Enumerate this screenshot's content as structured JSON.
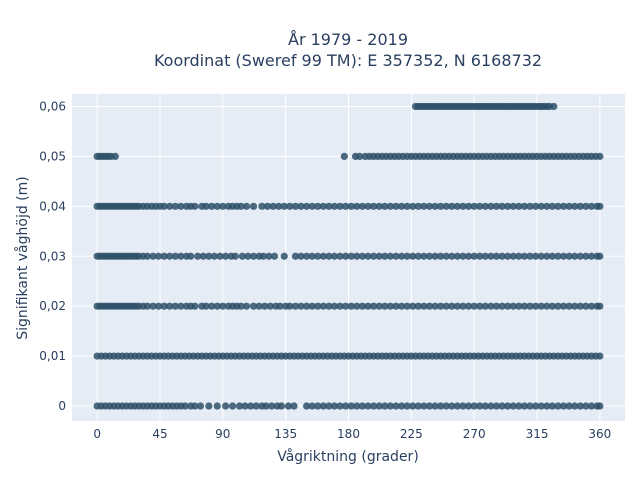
{
  "chart_data": {
    "type": "scatter",
    "title_line1": "År 1979 - 2019",
    "title_line2": "Koordinat (Sweref 99 TM): E 357352, N 6168732",
    "xlabel": "Vågriktning (grader)",
    "ylabel": "Signifikant våghöjd (m)",
    "xlim": [
      -18,
      378
    ],
    "ylim": [
      -0.003,
      0.0625
    ],
    "grid": true,
    "x_ticks": [
      {
        "value": 0,
        "label": "0"
      },
      {
        "value": 45,
        "label": "45"
      },
      {
        "value": 90,
        "label": "90"
      },
      {
        "value": 135,
        "label": "135"
      },
      {
        "value": 180,
        "label": "180"
      },
      {
        "value": 225,
        "label": "225"
      },
      {
        "value": 270,
        "label": "270"
      },
      {
        "value": 315,
        "label": "315"
      },
      {
        "value": 360,
        "label": "360"
      }
    ],
    "y_ticks": [
      {
        "value": 0,
        "label": "0"
      },
      {
        "value": 0.01,
        "label": "0,01"
      },
      {
        "value": 0.02,
        "label": "0,02"
      },
      {
        "value": 0.03,
        "label": "0,03"
      },
      {
        "value": 0.04,
        "label": "0,04"
      },
      {
        "value": 0.05,
        "label": "0,05"
      },
      {
        "value": 0.06,
        "label": "0,06"
      }
    ],
    "marker_color": "#2e5067",
    "series": [
      {
        "y": 0.06,
        "x": [
          228,
          230,
          232,
          234,
          236,
          238,
          240,
          242,
          244,
          246,
          248,
          250,
          252,
          254,
          256,
          258,
          260,
          262,
          264,
          266,
          268,
          270,
          272,
          274,
          276,
          278,
          280,
          282,
          284,
          286,
          288,
          290,
          292,
          294,
          296,
          298,
          300,
          302,
          304,
          306,
          308,
          310,
          312,
          314,
          316,
          318,
          320,
          322,
          324,
          327
        ]
      },
      {
        "y": 0.05,
        "x": [
          0,
          2,
          4,
          6,
          8,
          10,
          13,
          177,
          185,
          188,
          192,
          195,
          198,
          201,
          204,
          207,
          210,
          213,
          216,
          219,
          222,
          225,
          228,
          231,
          234,
          237,
          240,
          243,
          246,
          249,
          252,
          255,
          258,
          261,
          264,
          267,
          270,
          273,
          276,
          279,
          282,
          285,
          288,
          291,
          294,
          297,
          300,
          303,
          306,
          309,
          312,
          315,
          318,
          321,
          324,
          327,
          330,
          333,
          336,
          339,
          342,
          345,
          348,
          351,
          354,
          357,
          360
        ]
      },
      {
        "y": 0.04,
        "x": [
          0,
          2,
          4,
          6,
          8,
          10,
          12,
          14,
          16,
          18,
          20,
          22,
          24,
          26,
          28,
          30,
          33,
          36,
          39,
          42,
          45,
          48,
          52,
          56,
          60,
          64,
          67,
          70,
          75,
          78,
          82,
          86,
          90,
          94,
          97,
          100,
          103,
          107,
          112,
          118,
          122,
          126,
          130,
          134,
          138,
          142,
          146,
          150,
          154,
          158,
          162,
          166,
          170,
          174,
          178,
          182,
          186,
          190,
          194,
          198,
          202,
          206,
          210,
          214,
          218,
          222,
          226,
          230,
          234,
          238,
          242,
          246,
          250,
          254,
          258,
          262,
          266,
          270,
          274,
          278,
          282,
          286,
          290,
          294,
          298,
          302,
          306,
          310,
          314,
          318,
          322,
          326,
          330,
          334,
          338,
          342,
          346,
          350,
          354,
          358,
          360
        ]
      },
      {
        "y": 0.03,
        "x": [
          0,
          2,
          4,
          6,
          8,
          10,
          12,
          14,
          16,
          18,
          20,
          22,
          24,
          26,
          28,
          30,
          33,
          36,
          40,
          44,
          48,
          52,
          56,
          60,
          64,
          67,
          72,
          76,
          80,
          84,
          88,
          92,
          96,
          99,
          104,
          108,
          112,
          116,
          119,
          123,
          127,
          134,
          142,
          146,
          150,
          154,
          158,
          162,
          166,
          170,
          174,
          178,
          182,
          186,
          190,
          194,
          198,
          202,
          206,
          210,
          214,
          218,
          222,
          226,
          230,
          234,
          238,
          242,
          246,
          250,
          254,
          258,
          262,
          266,
          270,
          274,
          278,
          282,
          286,
          290,
          294,
          298,
          302,
          306,
          310,
          314,
          318,
          322,
          326,
          330,
          334,
          338,
          342,
          346,
          350,
          354,
          358,
          360
        ]
      },
      {
        "y": 0.02,
        "x": [
          0,
          2,
          4,
          6,
          8,
          10,
          12,
          14,
          16,
          18,
          20,
          22,
          24,
          26,
          28,
          30,
          33,
          36,
          40,
          44,
          48,
          52,
          56,
          60,
          64,
          67,
          70,
          75,
          78,
          82,
          86,
          90,
          94,
          97,
          100,
          103,
          107,
          112,
          116,
          120,
          124,
          128,
          131,
          135,
          138,
          142,
          146,
          150,
          154,
          158,
          162,
          166,
          170,
          174,
          178,
          182,
          186,
          190,
          194,
          198,
          202,
          206,
          210,
          214,
          218,
          222,
          226,
          230,
          234,
          238,
          242,
          246,
          250,
          254,
          258,
          262,
          266,
          270,
          274,
          278,
          282,
          286,
          290,
          294,
          298,
          302,
          306,
          310,
          314,
          318,
          322,
          326,
          330,
          334,
          338,
          342,
          346,
          350,
          354,
          358,
          360
        ]
      },
      {
        "y": 0.01,
        "x": [
          0,
          3,
          6,
          9,
          12,
          15,
          18,
          21,
          24,
          27,
          30,
          33,
          36,
          39,
          42,
          45,
          48,
          51,
          54,
          57,
          60,
          63,
          66,
          69,
          72,
          75,
          78,
          81,
          84,
          87,
          90,
          93,
          96,
          99,
          102,
          105,
          108,
          111,
          114,
          117,
          120,
          123,
          126,
          129,
          132,
          135,
          138,
          141,
          144,
          147,
          150,
          153,
          156,
          159,
          162,
          165,
          168,
          171,
          174,
          177,
          180,
          183,
          186,
          189,
          192,
          195,
          198,
          201,
          204,
          207,
          210,
          213,
          216,
          219,
          222,
          225,
          228,
          231,
          234,
          237,
          240,
          243,
          246,
          249,
          252,
          255,
          258,
          261,
          264,
          267,
          270,
          273,
          276,
          279,
          282,
          285,
          288,
          291,
          294,
          297,
          300,
          303,
          306,
          309,
          312,
          315,
          318,
          321,
          324,
          327,
          330,
          333,
          336,
          339,
          342,
          345,
          348,
          351,
          354,
          357,
          360
        ]
      },
      {
        "y": 0.0,
        "x": [
          0,
          3,
          6,
          9,
          12,
          15,
          18,
          21,
          24,
          27,
          30,
          33,
          36,
          39,
          42,
          45,
          48,
          51,
          54,
          57,
          60,
          63,
          67,
          70,
          74,
          80,
          86,
          92,
          97,
          102,
          106,
          110,
          114,
          118,
          121,
          125,
          129,
          132,
          137,
          141,
          150,
          154,
          158,
          162,
          166,
          170,
          174,
          178,
          182,
          186,
          190,
          194,
          198,
          202,
          206,
          210,
          214,
          218,
          222,
          226,
          230,
          234,
          238,
          242,
          246,
          250,
          254,
          258,
          262,
          266,
          270,
          274,
          278,
          282,
          286,
          290,
          294,
          298,
          302,
          306,
          310,
          314,
          318,
          322,
          326,
          330,
          334,
          338,
          342,
          346,
          350,
          354,
          358,
          360
        ]
      }
    ]
  }
}
